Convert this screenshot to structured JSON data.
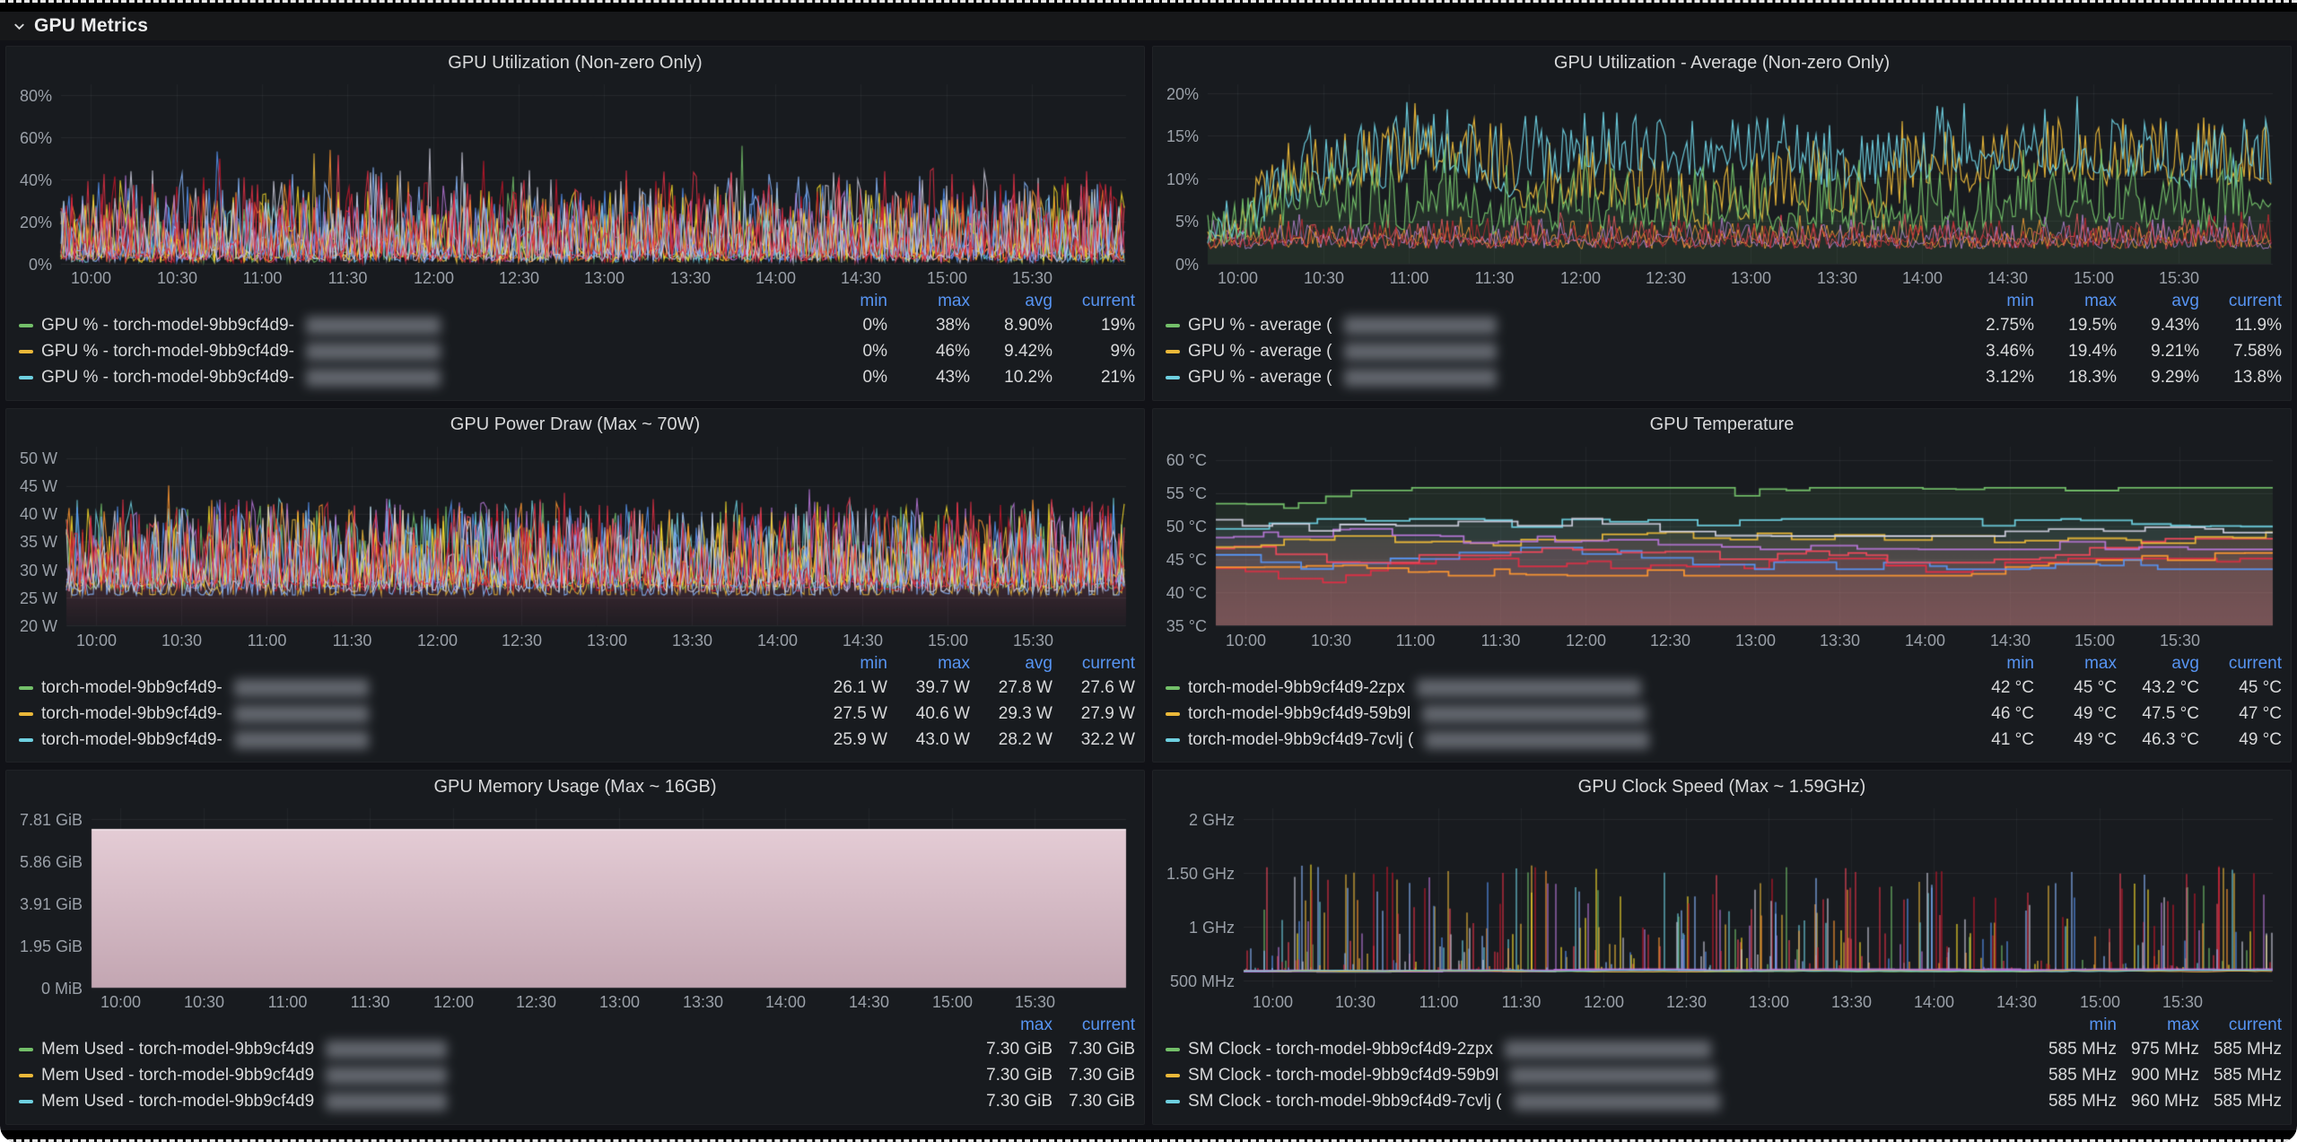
{
  "page": {
    "section_title": "GPU Metrics"
  },
  "colors": {
    "background": "#111217",
    "panel": "#181b1f",
    "panel_border": "#202226",
    "text": "#d8d9da",
    "muted": "#9aa0a8",
    "legend_header": "#5794F2",
    "series_green": "#73BF69",
    "series_yellow": "#EAB839",
    "series_blue": "#6ED0E0"
  },
  "chart_data": [
    {
      "title": "GPU Utilization (Non-zero Only)",
      "type": "line",
      "viz_mode": "util",
      "ylim": [
        0,
        85
      ],
      "ylabel": "",
      "xlabel": "",
      "y_ticks": [
        {
          "v": 0,
          "label": "0%"
        },
        {
          "v": 20,
          "label": "20%"
        },
        {
          "v": 40,
          "label": "40%"
        },
        {
          "v": 60,
          "label": "60%"
        },
        {
          "v": 80,
          "label": "80%"
        }
      ],
      "x_ticks": [
        "10:00",
        "10:30",
        "11:00",
        "11:30",
        "12:00",
        "12:30",
        "13:00",
        "13:30",
        "14:00",
        "14:30",
        "15:00",
        "15:30"
      ],
      "legend": {
        "columns": [
          "min",
          "max",
          "avg",
          "current"
        ],
        "series": [
          {
            "label": "GPU % - torch-model-9bb9cf4d9-",
            "color": "#73BF69",
            "redacted": true,
            "values": [
              "0%",
              "38%",
              "8.90%",
              "19%"
            ]
          },
          {
            "label": "GPU % - torch-model-9bb9cf4d9-",
            "color": "#EAB839",
            "redacted": true,
            "values": [
              "0%",
              "46%",
              "9.42%",
              "9%"
            ]
          },
          {
            "label": "GPU % - torch-model-9bb9cf4d9-",
            "color": "#6ED0E0",
            "redacted": true,
            "values": [
              "0%",
              "43%",
              "10.2%",
              "21%"
            ]
          }
        ]
      }
    },
    {
      "title": "GPU Utilization - Average (Non-zero Only)",
      "type": "line",
      "viz_mode": "avg",
      "ylim": [
        0,
        21
      ],
      "y_ticks": [
        {
          "v": 0,
          "label": "0%"
        },
        {
          "v": 5,
          "label": "5%"
        },
        {
          "v": 10,
          "label": "10%"
        },
        {
          "v": 15,
          "label": "15%"
        },
        {
          "v": 20,
          "label": "20%"
        }
      ],
      "x_ticks": [
        "10:00",
        "10:30",
        "11:00",
        "11:30",
        "12:00",
        "12:30",
        "13:00",
        "13:30",
        "14:00",
        "14:30",
        "15:00",
        "15:30"
      ],
      "legend": {
        "columns": [
          "min",
          "max",
          "avg",
          "current"
        ],
        "series": [
          {
            "label": "GPU % - average (",
            "color": "#73BF69",
            "redacted": true,
            "values": [
              "2.75%",
              "19.5%",
              "9.43%",
              "11.9%"
            ]
          },
          {
            "label": "GPU % - average (",
            "color": "#EAB839",
            "redacted": true,
            "values": [
              "3.46%",
              "19.4%",
              "9.21%",
              "7.58%"
            ]
          },
          {
            "label": "GPU % - average (",
            "color": "#6ED0E0",
            "redacted": true,
            "values": [
              "3.12%",
              "18.3%",
              "9.29%",
              "13.8%"
            ]
          }
        ]
      }
    },
    {
      "title": "GPU Power Draw (Max ~ 70W)",
      "type": "line",
      "viz_mode": "power",
      "ylim": [
        20,
        52
      ],
      "y_ticks": [
        {
          "v": 20,
          "label": "20 W"
        },
        {
          "v": 25,
          "label": "25 W"
        },
        {
          "v": 30,
          "label": "30 W"
        },
        {
          "v": 35,
          "label": "35 W"
        },
        {
          "v": 40,
          "label": "40 W"
        },
        {
          "v": 45,
          "label": "45 W"
        },
        {
          "v": 50,
          "label": "50 W"
        }
      ],
      "x_ticks": [
        "10:00",
        "10:30",
        "11:00",
        "11:30",
        "12:00",
        "12:30",
        "13:00",
        "13:30",
        "14:00",
        "14:30",
        "15:00",
        "15:30"
      ],
      "legend": {
        "columns": [
          "min",
          "max",
          "avg",
          "current"
        ],
        "series": [
          {
            "label": "torch-model-9bb9cf4d9-",
            "color": "#73BF69",
            "redacted": true,
            "values": [
              "26.1 W",
              "39.7 W",
              "27.8 W",
              "27.6 W"
            ]
          },
          {
            "label": "torch-model-9bb9cf4d9-",
            "color": "#EAB839",
            "redacted": true,
            "values": [
              "27.5 W",
              "40.6 W",
              "29.3 W",
              "27.9 W"
            ]
          },
          {
            "label": "torch-model-9bb9cf4d9-",
            "color": "#6ED0E0",
            "redacted": true,
            "values": [
              "25.9 W",
              "43.0 W",
              "28.2 W",
              "32.2 W"
            ]
          }
        ]
      }
    },
    {
      "title": "GPU Temperature",
      "type": "line",
      "viz_mode": "temp",
      "ylim": [
        35,
        62
      ],
      "y_ticks": [
        {
          "v": 35,
          "label": "35 °C"
        },
        {
          "v": 40,
          "label": "40 °C"
        },
        {
          "v": 45,
          "label": "45 °C"
        },
        {
          "v": 50,
          "label": "50 °C"
        },
        {
          "v": 55,
          "label": "55 °C"
        },
        {
          "v": 60,
          "label": "60 °C"
        }
      ],
      "x_ticks": [
        "10:00",
        "10:30",
        "11:00",
        "11:30",
        "12:00",
        "12:30",
        "13:00",
        "13:30",
        "14:00",
        "14:30",
        "15:00",
        "15:30"
      ],
      "legend": {
        "columns": [
          "min",
          "max",
          "avg",
          "current"
        ],
        "series": [
          {
            "label": "torch-model-9bb9cf4d9-2zpx",
            "color": "#73BF69",
            "redacted": true,
            "values": [
              "42 °C",
              "45 °C",
              "43.2 °C",
              "45 °C"
            ]
          },
          {
            "label": "torch-model-9bb9cf4d9-59b9l",
            "color": "#EAB839",
            "redacted": true,
            "values": [
              "46 °C",
              "49 °C",
              "47.5 °C",
              "47 °C"
            ]
          },
          {
            "label": "torch-model-9bb9cf4d9-7cvlj (",
            "color": "#6ED0E0",
            "redacted": true,
            "values": [
              "41 °C",
              "49 °C",
              "46.3 °C",
              "49 °C"
            ]
          }
        ]
      }
    },
    {
      "title": "GPU Memory Usage (Max ~ 16GB)",
      "type": "area",
      "viz_mode": "mem",
      "flat_value": 7.3,
      "ylim": [
        0,
        8.3
      ],
      "y_ticks": [
        {
          "v": 0,
          "label": "0 MiB"
        },
        {
          "v": 1.95,
          "label": "1.95 GiB"
        },
        {
          "v": 3.91,
          "label": "3.91 GiB"
        },
        {
          "v": 5.86,
          "label": "5.86 GiB"
        },
        {
          "v": 7.81,
          "label": "7.81 GiB"
        }
      ],
      "x_ticks": [
        "10:00",
        "10:30",
        "11:00",
        "11:30",
        "12:00",
        "12:30",
        "13:00",
        "13:30",
        "14:00",
        "14:30",
        "15:00",
        "15:30"
      ],
      "legend": {
        "columns": [
          "max",
          "current"
        ],
        "series": [
          {
            "label": "Mem Used - torch-model-9bb9cf4d9",
            "color": "#73BF69",
            "redacted": true,
            "values": [
              "7.30 GiB",
              "7.30 GiB"
            ]
          },
          {
            "label": "Mem Used - torch-model-9bb9cf4d9",
            "color": "#EAB839",
            "redacted": true,
            "values": [
              "7.30 GiB",
              "7.30 GiB"
            ]
          },
          {
            "label": "Mem Used - torch-model-9bb9cf4d9",
            "color": "#6ED0E0",
            "redacted": true,
            "values": [
              "7.30 GiB",
              "7.30 GiB"
            ]
          }
        ]
      }
    },
    {
      "title": "GPU Clock Speed (Max ~ 1.59GHz)",
      "type": "line",
      "viz_mode": "clock",
      "baseline_value": 585,
      "ylim": [
        430,
        2100
      ],
      "y_ticks": [
        {
          "v": 500,
          "label": "500 MHz"
        },
        {
          "v": 1000,
          "label": "1 GHz"
        },
        {
          "v": 1500,
          "label": "1.50 GHz"
        },
        {
          "v": 2000,
          "label": "2 GHz"
        }
      ],
      "x_ticks": [
        "10:00",
        "10:30",
        "11:00",
        "11:30",
        "12:00",
        "12:30",
        "13:00",
        "13:30",
        "14:00",
        "14:30",
        "15:00",
        "15:30"
      ],
      "legend": {
        "columns": [
          "min",
          "max",
          "current"
        ],
        "series": [
          {
            "label": "SM Clock - torch-model-9bb9cf4d9-2zpx",
            "color": "#73BF69",
            "redacted": true,
            "values": [
              "585 MHz",
              "975 MHz",
              "585 MHz"
            ]
          },
          {
            "label": "SM Clock - torch-model-9bb9cf4d9-59b9l",
            "color": "#EAB839",
            "redacted": true,
            "values": [
              "585 MHz",
              "900 MHz",
              "585 MHz"
            ]
          },
          {
            "label": "SM Clock - torch-model-9bb9cf4d9-7cvlj (",
            "color": "#6ED0E0",
            "redacted": true,
            "values": [
              "585 MHz",
              "960 MHz",
              "585 MHz"
            ]
          }
        ]
      }
    }
  ]
}
